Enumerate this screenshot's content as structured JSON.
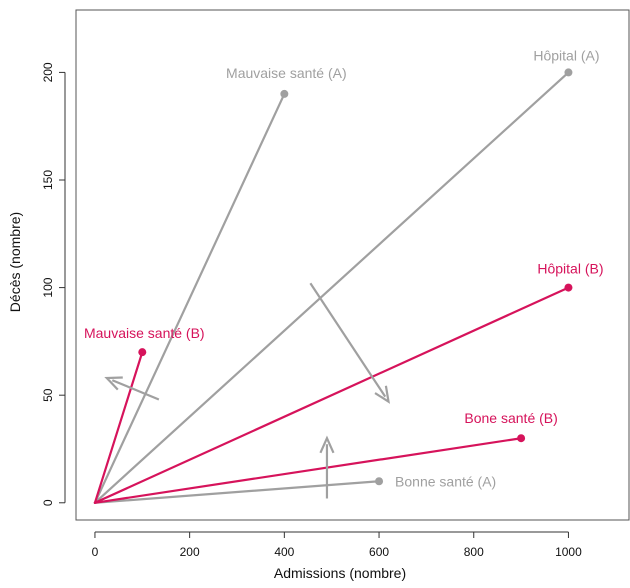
{
  "chart_data": {
    "type": "scatter",
    "xlabel": "Admissions (nombre)",
    "ylabel": "Décès (nombre)",
    "xlim": [
      -40,
      1130
    ],
    "ylim": [
      -8,
      229
    ],
    "xticks": [
      0,
      200,
      400,
      600,
      800,
      1000
    ],
    "yticks": [
      0,
      50,
      100,
      150,
      200
    ],
    "grid": false,
    "origin": [
      0,
      0
    ],
    "series": [
      {
        "name": "A",
        "color": "#a0a0a0",
        "points": [
          {
            "label": "Mauvaise santé (A)",
            "x": 400,
            "y": 190
          },
          {
            "label": "Hôpital (A)",
            "x": 1000,
            "y": 200
          },
          {
            "label": "Bonne santé (A)",
            "x": 600,
            "y": 10
          }
        ]
      },
      {
        "name": "B",
        "color": "#d6135b",
        "points": [
          {
            "label": "Mauvaise santé (B)",
            "x": 100,
            "y": 70
          },
          {
            "label": "Hôpital (B)",
            "x": 1000,
            "y": 100
          },
          {
            "label": "Bone santé (B)",
            "x": 900,
            "y": 30
          }
        ]
      }
    ],
    "arrows": [
      {
        "from": [
          135,
          48
        ],
        "to": [
          25,
          58
        ],
        "color": "#a0a0a0"
      },
      {
        "from": [
          455,
          102
        ],
        "to": [
          620,
          47
        ],
        "color": "#a0a0a0"
      },
      {
        "from": [
          490,
          2
        ],
        "to": [
          490,
          30
        ],
        "color": "#a0a0a0"
      }
    ]
  }
}
